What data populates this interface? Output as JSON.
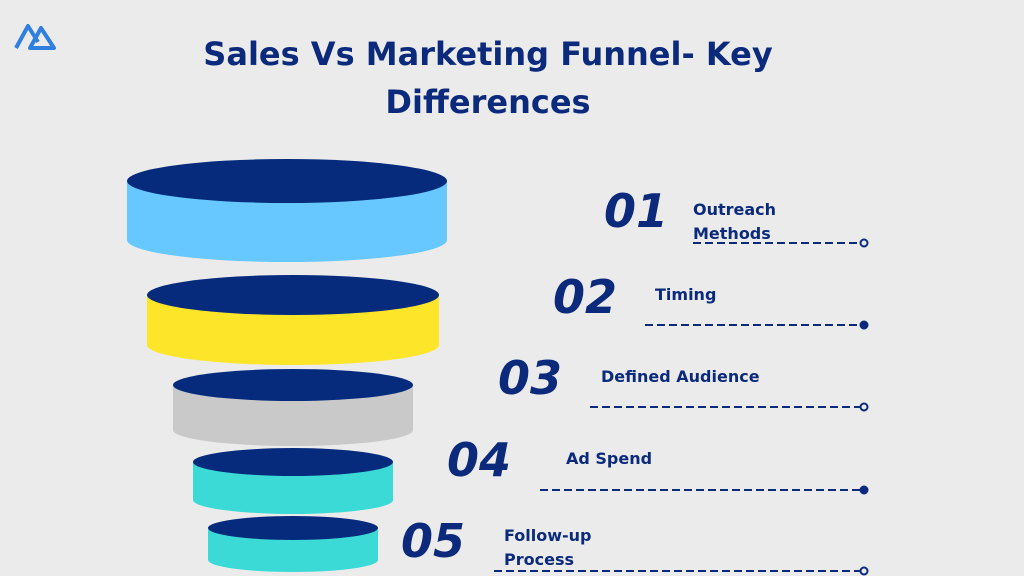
{
  "header": {
    "title": "Sales Vs Marketing Funnel- Key Differences"
  },
  "items": [
    {
      "number": "01",
      "label": "Outreach Methods"
    },
    {
      "number": "02",
      "label": "Timing"
    },
    {
      "number": "03",
      "label": "Defined Audience"
    },
    {
      "number": "04",
      "label": "Ad Spend"
    },
    {
      "number": "05",
      "label": "Follow-up Process"
    }
  ]
}
